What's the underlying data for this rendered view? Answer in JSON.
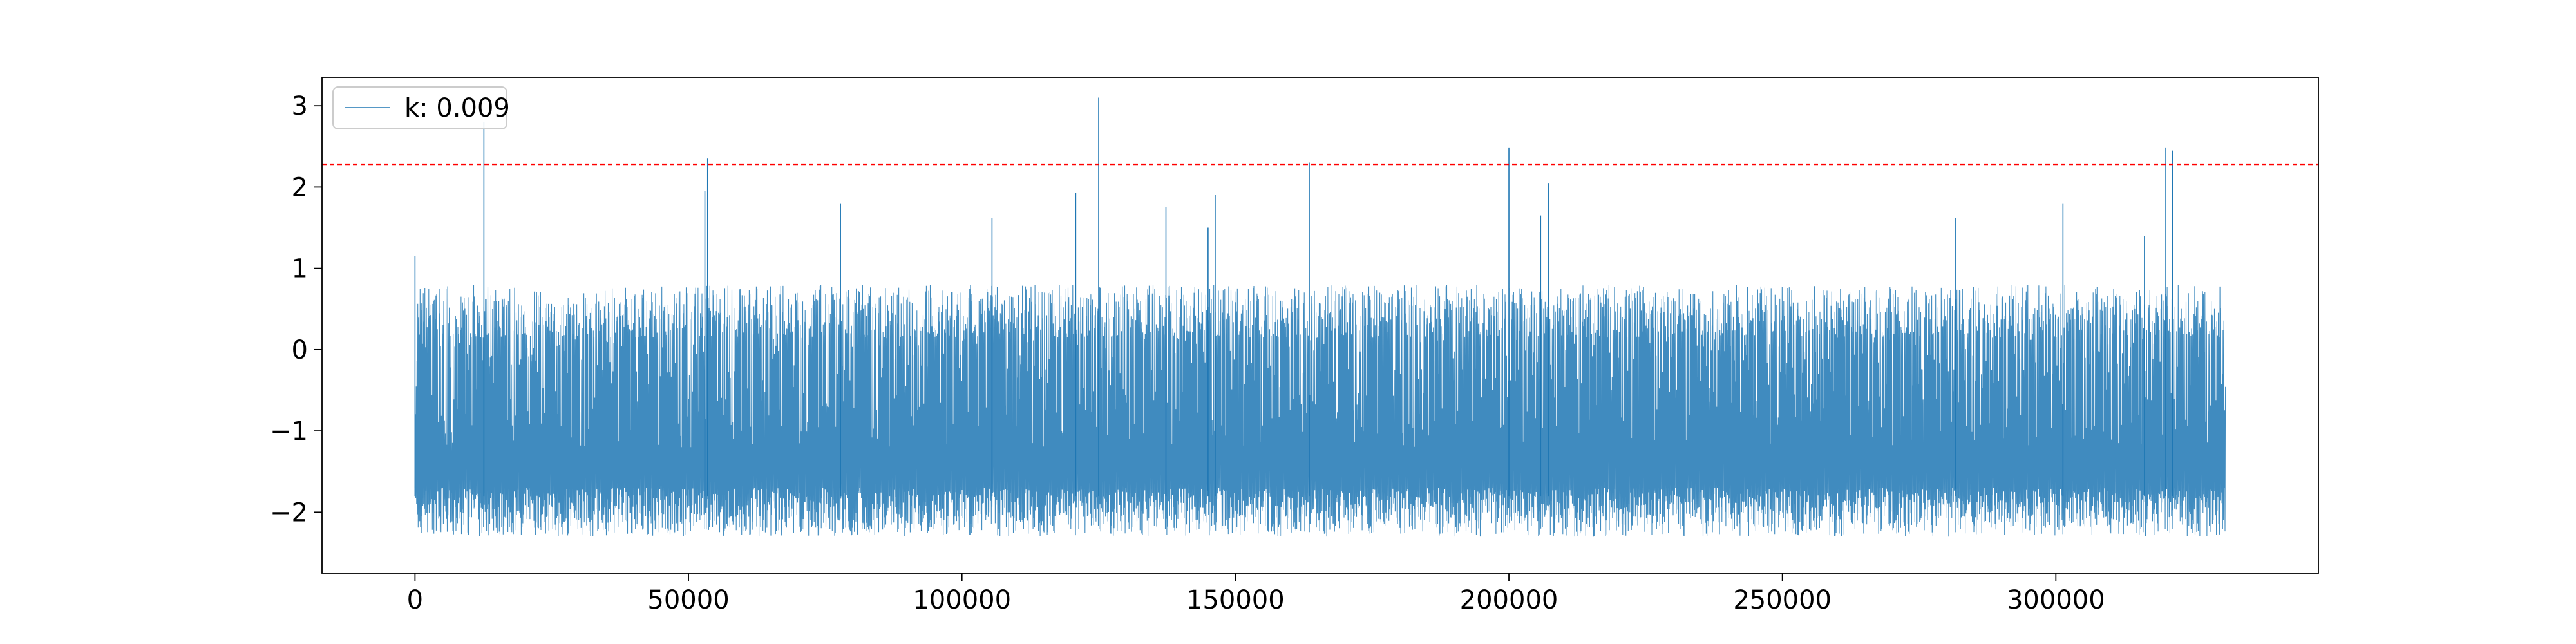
{
  "chart_data": {
    "type": "line",
    "title": "",
    "xlabel": "",
    "ylabel": "",
    "xlim": [
      -17000,
      348000
    ],
    "ylim": [
      -2.75,
      3.35
    ],
    "x_ticks": [
      0,
      50000,
      100000,
      150000,
      200000,
      250000,
      300000
    ],
    "x_tick_labels": [
      "0",
      "50000",
      "100000",
      "150000",
      "200000",
      "250000",
      "300000"
    ],
    "y_ticks": [
      -2,
      -1,
      0,
      1,
      2,
      3
    ],
    "y_tick_labels": [
      "−2",
      "−1",
      "0",
      "1",
      "2",
      "3"
    ],
    "grid": false,
    "legend": {
      "position": "top-left"
    },
    "series": [
      {
        "name": "k: 0.009",
        "color": "#1f77b4",
        "x_range": [
          0,
          331000
        ],
        "baseline_range": [
          -2.3,
          0.9
        ],
        "spikes": [
          {
            "x": 0,
            "y": 1.15
          },
          {
            "x": 12600,
            "y": 2.8
          },
          {
            "x": 53500,
            "y": 2.35
          },
          {
            "x": 53000,
            "y": 1.95
          },
          {
            "x": 77800,
            "y": 1.8
          },
          {
            "x": 105500,
            "y": 1.62
          },
          {
            "x": 120800,
            "y": 1.93
          },
          {
            "x": 125000,
            "y": 3.1
          },
          {
            "x": 137300,
            "y": 1.75
          },
          {
            "x": 145000,
            "y": 1.5
          },
          {
            "x": 146300,
            "y": 1.9
          },
          {
            "x": 163500,
            "y": 2.3
          },
          {
            "x": 200000,
            "y": 2.48
          },
          {
            "x": 205800,
            "y": 1.65
          },
          {
            "x": 207200,
            "y": 2.05
          },
          {
            "x": 281700,
            "y": 1.62
          },
          {
            "x": 301300,
            "y": 1.8
          },
          {
            "x": 316200,
            "y": 1.4
          },
          {
            "x": 320100,
            "y": 2.48
          },
          {
            "x": 321300,
            "y": 2.45
          }
        ]
      }
    ],
    "threshold": {
      "y": 2.28,
      "color": "#ff0000",
      "style": "dashed"
    }
  }
}
